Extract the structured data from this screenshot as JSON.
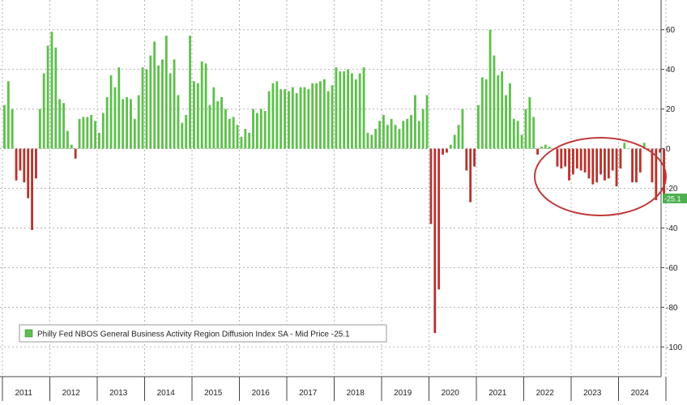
{
  "chart_data": {
    "type": "bar",
    "legend_text": "Philly Fed NBOS General Business Activity Region Diffusion Index SA - Mid Price",
    "last_value_label": "-25.1",
    "legend_position": "bottom-left",
    "grid": true,
    "ylim": [
      -115,
      75
    ],
    "y_ticks": [
      60,
      40,
      20,
      0,
      -20,
      -40,
      -60,
      -80,
      -100
    ],
    "y_tick_labels": [
      "60",
      "40",
      "20",
      "0",
      "-20",
      "-40",
      "-60",
      "-80",
      "-100"
    ],
    "x_labels": [
      "2011",
      "2012",
      "2013",
      "2014",
      "2015",
      "2016",
      "2017",
      "2018",
      "2019",
      "2020",
      "2021",
      "2022",
      "2023",
      "2024"
    ],
    "x_start_date": "2011-01",
    "colors": {
      "positive": "#5cc14a",
      "negative": "#b8322e",
      "grid": "#b3b3b3",
      "circle": "#c0393b",
      "last_label_bg": "#4caf50"
    },
    "series": [
      {
        "values": [
          22,
          34,
          20,
          -16,
          -11,
          -17,
          -25,
          -41,
          -15,
          20,
          38,
          52,
          59,
          51,
          25,
          23,
          9,
          2,
          -5,
          15,
          16,
          16,
          17,
          14,
          8,
          18,
          26,
          37,
          31,
          41,
          25,
          26,
          25,
          15,
          27,
          41,
          40,
          47,
          54,
          42,
          45,
          57,
          38,
          45,
          27,
          13,
          17,
          57,
          34,
          33,
          44,
          43,
          22,
          31,
          24,
          26,
          20,
          15,
          16,
          12,
          6,
          10,
          8,
          20,
          18,
          20,
          19,
          29,
          33,
          34,
          30,
          30,
          29,
          31,
          28,
          31,
          31,
          30,
          33,
          33,
          34,
          35,
          29,
          32,
          41,
          39,
          39,
          40,
          38,
          35,
          38,
          41,
          8,
          7,
          10,
          14,
          17,
          12,
          15,
          12,
          10,
          14,
          15,
          17,
          27,
          14,
          20,
          27,
          -38,
          -93,
          -71,
          -3,
          -2,
          2,
          7,
          12,
          20,
          -11,
          -27,
          -9,
          22,
          36,
          35,
          60,
          47,
          37,
          39,
          27,
          33,
          15,
          14,
          7,
          20,
          26,
          16,
          -3,
          1,
          2,
          1,
          0,
          -9,
          -10,
          -9,
          -16,
          -13,
          -10,
          -11,
          -12,
          -15,
          -18,
          -17,
          -13,
          -16,
          -15,
          -11,
          -19,
          -10,
          3,
          0,
          -17,
          -17,
          -12,
          3,
          -1,
          -17,
          -26,
          -2,
          -25.1
        ]
      }
    ]
  }
}
